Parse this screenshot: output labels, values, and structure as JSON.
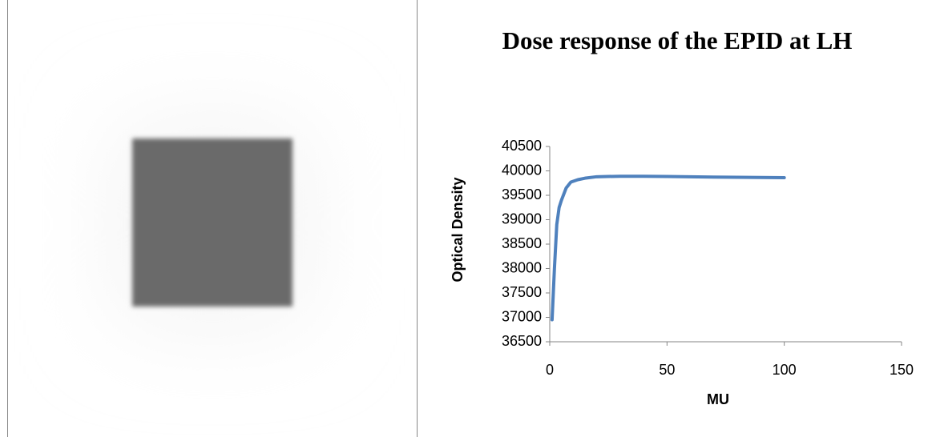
{
  "chart_data": {
    "type": "line",
    "title": "Dose response of the EPID at LH",
    "x_label": "MU",
    "y_label": "Optical Density",
    "x": [
      1,
      2,
      3,
      4,
      5,
      7,
      9,
      12,
      15,
      20,
      30,
      40,
      50,
      75,
      100
    ],
    "values": [
      36950,
      38000,
      38900,
      39250,
      39400,
      39650,
      39770,
      39820,
      39850,
      39880,
      39890,
      39890,
      39885,
      39870,
      39860
    ],
    "color": "#4f81bd",
    "xlim": [
      0,
      150
    ],
    "xticks": [
      0,
      50,
      100,
      150
    ],
    "ylim": [
      36500,
      40500
    ],
    "yticks": [
      36500,
      37000,
      37500,
      38000,
      38500,
      39000,
      39500,
      40000,
      40500
    ],
    "grid": false
  }
}
